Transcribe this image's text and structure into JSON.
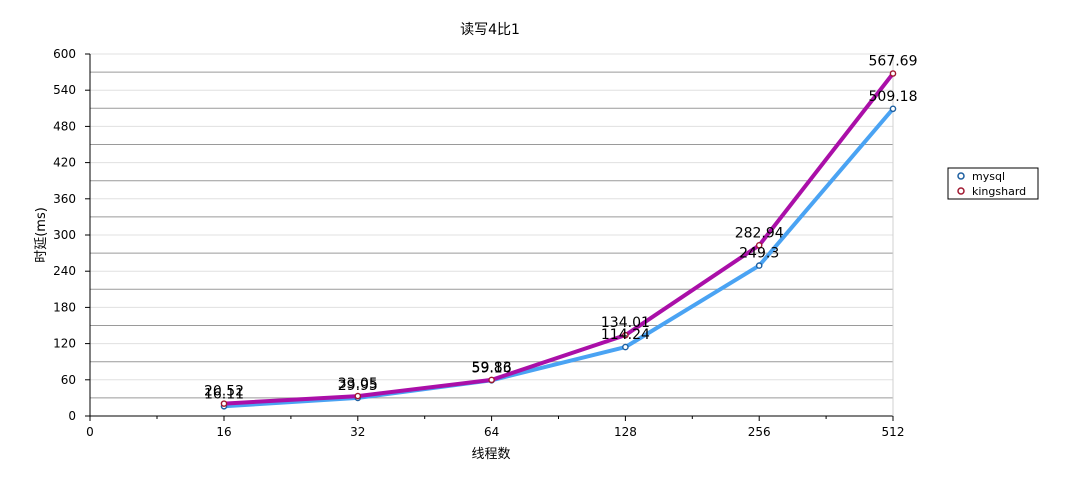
{
  "chart_data": {
    "type": "line",
    "title": "读写4比1",
    "xlabel": "线程数",
    "ylabel": "时延(ms)",
    "categories": [
      "16",
      "32",
      "64",
      "128",
      "256",
      "512"
    ],
    "x_zero_label": "0",
    "x_scale": "log2",
    "ylim": [
      0,
      600
    ],
    "yticks": [
      "0",
      "60",
      "120",
      "180",
      "240",
      "300",
      "360",
      "420",
      "480",
      "540",
      "600"
    ],
    "grid": true,
    "legend_position": "right",
    "series": [
      {
        "name": "mysql",
        "color": "#4aa3f3",
        "values": [
          16.11,
          29.95,
          59.16,
          114.24,
          249.3,
          509.18
        ],
        "labels": [
          "16.11",
          "29.95",
          "59.16",
          "114.24",
          "249.3",
          "509.18"
        ]
      },
      {
        "name": "kingshard",
        "color": "#aa0fa8",
        "values": [
          20.52,
          33.05,
          59.83,
          134.01,
          282.94,
          567.69
        ],
        "labels": [
          "20.52",
          "33.05",
          "59.83",
          "134.01",
          "282.94",
          "567.69"
        ]
      }
    ]
  }
}
